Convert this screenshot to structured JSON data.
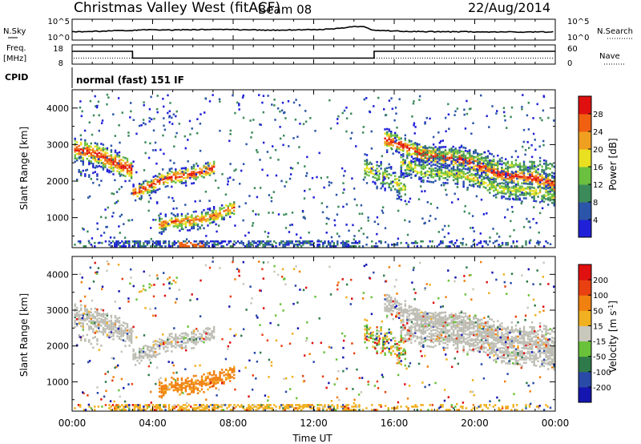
{
  "header": {
    "station": "Christmas Valley West (fitACF)",
    "beam": "Beam 08",
    "date": "22/Aug/2014",
    "cpid_label": "CPID",
    "cpid_value": "normal (fast) 151 IF"
  },
  "chart_data": [
    {
      "type": "line",
      "name": "noise-panel",
      "left_label": "N.Sky",
      "right_label": "N.Search",
      "y_ticks": [
        "10^5",
        "10^0"
      ],
      "right_ticks": [
        "10^5",
        "10^0"
      ],
      "x_hours": [
        0,
        1,
        2,
        3,
        4,
        5,
        6,
        7,
        8,
        9,
        10,
        11,
        12,
        13,
        14,
        14.5,
        15,
        16,
        17,
        18,
        19,
        20,
        21,
        22,
        23,
        24
      ],
      "n_sky_log": [
        0.35,
        0.38,
        0.42,
        0.45,
        0.5,
        0.48,
        0.5,
        0.52,
        0.5,
        0.48,
        0.47,
        0.48,
        0.5,
        0.55,
        0.72,
        0.7,
        0.45,
        0.4,
        0.38,
        0.36,
        0.35,
        0.35,
        0.34,
        0.34,
        0.34,
        0.34
      ]
    },
    {
      "type": "line",
      "name": "frequency-panel",
      "left_label_line1": "Freq.",
      "left_label_line2": "[MHz]",
      "right_label": "Nave",
      "y_ticks": [
        "18",
        "8"
      ],
      "right_ticks": [
        "60",
        "0"
      ],
      "freq_steps": [
        {
          "from": 0,
          "to": 3,
          "mhz": 15.2
        },
        {
          "from": 3,
          "to": 15,
          "mhz": 10.5
        },
        {
          "from": 15,
          "to": 24,
          "mhz": 15.2
        }
      ],
      "nave_level": 15
    },
    {
      "type": "heatmap",
      "name": "power",
      "ylabel": "Slant Range [km]",
      "y_ticks": [
        "1000",
        "2000",
        "3000",
        "4000"
      ],
      "ylim": [
        180,
        4500
      ],
      "colorbar_label": "Power [dB]",
      "colorbar_ticks": [
        "4",
        "8",
        "12",
        "16",
        "20",
        "24",
        "28"
      ],
      "colors": [
        "#2020d8",
        "#2b55a8",
        "#3c8a5a",
        "#6cc040",
        "#e8e020",
        "#f0a020",
        "#f06010",
        "#e01010"
      ]
    },
    {
      "type": "heatmap",
      "name": "velocity",
      "ylabel": "Slant Range [km]",
      "y_ticks": [
        "1000",
        "2000",
        "3000",
        "4000"
      ],
      "ylim": [
        180,
        4500
      ],
      "colorbar_label": "Velocity [m s-1]",
      "colorbar_ticks": [
        "200",
        "100",
        "50",
        "15",
        "-15",
        "-50",
        "-100",
        "-200"
      ],
      "colors": [
        "#1515b0",
        "#2a4aa8",
        "#2f7a4a",
        "#69c23a",
        "#c8c8bc",
        "#f0b020",
        "#f08010",
        "#e84010",
        "#e01010"
      ],
      "ground_scatter_color": "#bdbdb4"
    }
  ],
  "x_axis": {
    "label": "Time UT",
    "tick_labels": [
      "00:00",
      "04:00",
      "08:00",
      "12:00",
      "16:00",
      "20:00",
      "00:00"
    ],
    "tick_hours": [
      0,
      4,
      8,
      12,
      16,
      20,
      24
    ]
  }
}
